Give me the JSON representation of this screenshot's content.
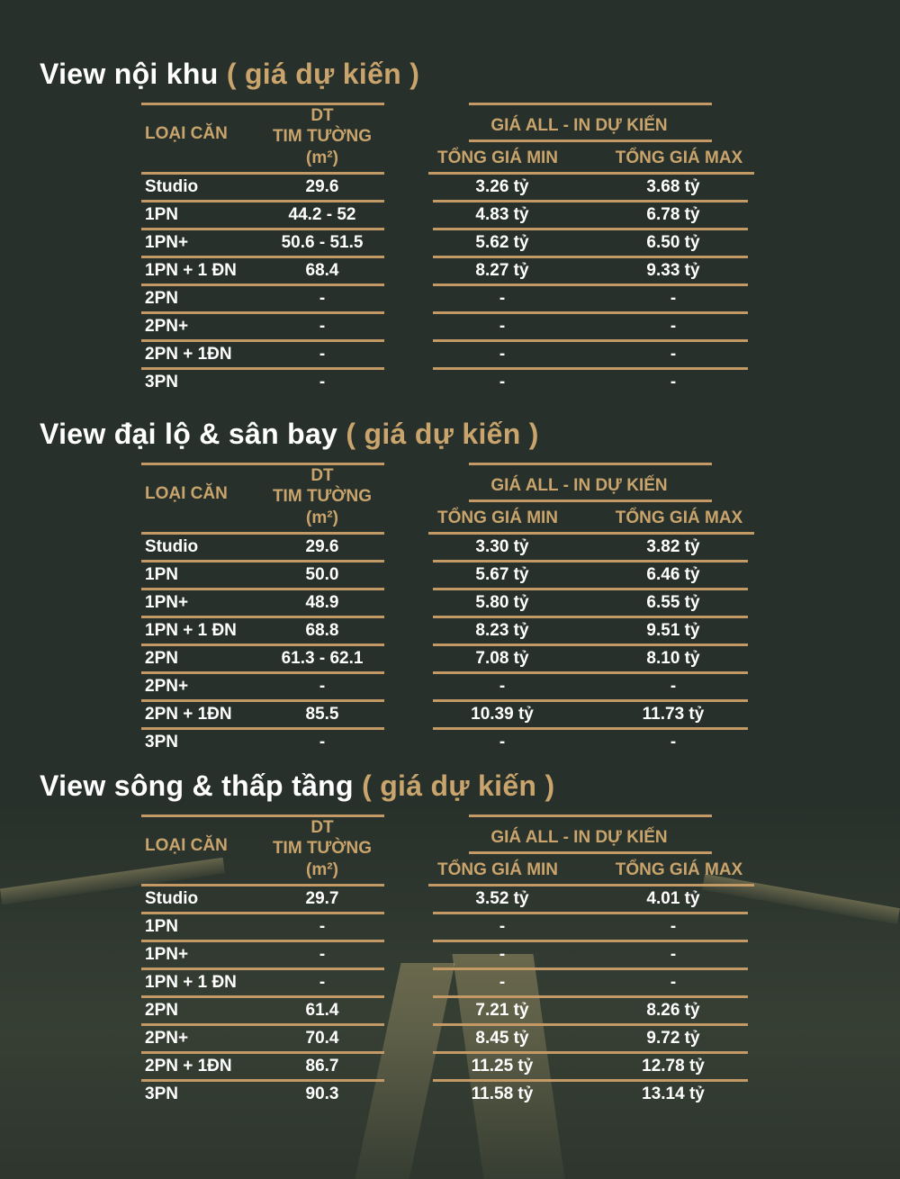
{
  "colors": {
    "background": "#27302a",
    "gold": "#c9a46c",
    "text": "#ffffff"
  },
  "headers": {
    "type": "LOẠI CĂN",
    "area_line1": "DT",
    "area_line2": "TIM TƯỜNG",
    "area_line3": "(m²)",
    "price_group": "GIÁ ALL - IN DỰ KIẾN",
    "price_min": "TỔNG GIÁ MIN",
    "price_max": "TỔNG GIÁ MAX"
  },
  "sections": [
    {
      "title": "View nội khu",
      "subtitle": "( giá dự kiến )",
      "rows": [
        [
          "Studio",
          "29.6",
          "3.26 tỷ",
          "3.68 tỷ"
        ],
        [
          "1PN",
          "44.2 - 52",
          "4.83 tỷ",
          "6.78 tỷ"
        ],
        [
          "1PN+",
          "50.6 - 51.5",
          "5.62 tỷ",
          "6.50 tỷ"
        ],
        [
          "1PN + 1 ĐN",
          "68.4",
          "8.27 tỷ",
          "9.33 tỷ"
        ],
        [
          "2PN",
          "-",
          "-",
          "-"
        ],
        [
          "2PN+",
          "-",
          "-",
          "-"
        ],
        [
          "2PN + 1ĐN",
          "-",
          "-",
          "-"
        ],
        [
          "3PN",
          "-",
          "-",
          "-"
        ]
      ]
    },
    {
      "title": "View đại lộ & sân bay",
      "subtitle": "( giá dự kiến )",
      "rows": [
        [
          "Studio",
          "29.6",
          "3.30 tỷ",
          "3.82 tỷ"
        ],
        [
          "1PN",
          "50.0",
          "5.67 tỷ",
          "6.46 tỷ"
        ],
        [
          "1PN+",
          "48.9",
          "5.80 tỷ",
          "6.55 tỷ"
        ],
        [
          "1PN + 1 ĐN",
          "68.8",
          "8.23 tỷ",
          "9.51 tỷ"
        ],
        [
          "2PN",
          "61.3 - 62.1",
          "7.08 tỷ",
          "8.10 tỷ"
        ],
        [
          "2PN+",
          "-",
          "-",
          "-"
        ],
        [
          "2PN + 1ĐN",
          "85.5",
          "10.39 tỷ",
          "11.73 tỷ"
        ],
        [
          "3PN",
          "-",
          "-",
          "-"
        ]
      ]
    },
    {
      "title": "View sông & thấp tầng",
      "subtitle": "( giá dự kiến )",
      "rows": [
        [
          "Studio",
          "29.7",
          "3.52 tỷ",
          "4.01 tỷ"
        ],
        [
          "1PN",
          "-",
          "-",
          "-"
        ],
        [
          "1PN+",
          "-",
          "-",
          "-"
        ],
        [
          "1PN + 1 ĐN",
          "-",
          "-",
          "-"
        ],
        [
          "2PN",
          "61.4",
          "7.21 tỷ",
          "8.26 tỷ"
        ],
        [
          "2PN+",
          "70.4",
          "8.45 tỷ",
          "9.72 tỷ"
        ],
        [
          "2PN + 1ĐN",
          "86.7",
          "11.25 tỷ",
          "12.78 tỷ"
        ],
        [
          "3PN",
          "90.3",
          "11.58 tỷ",
          "13.14 tỷ"
        ]
      ]
    }
  ]
}
